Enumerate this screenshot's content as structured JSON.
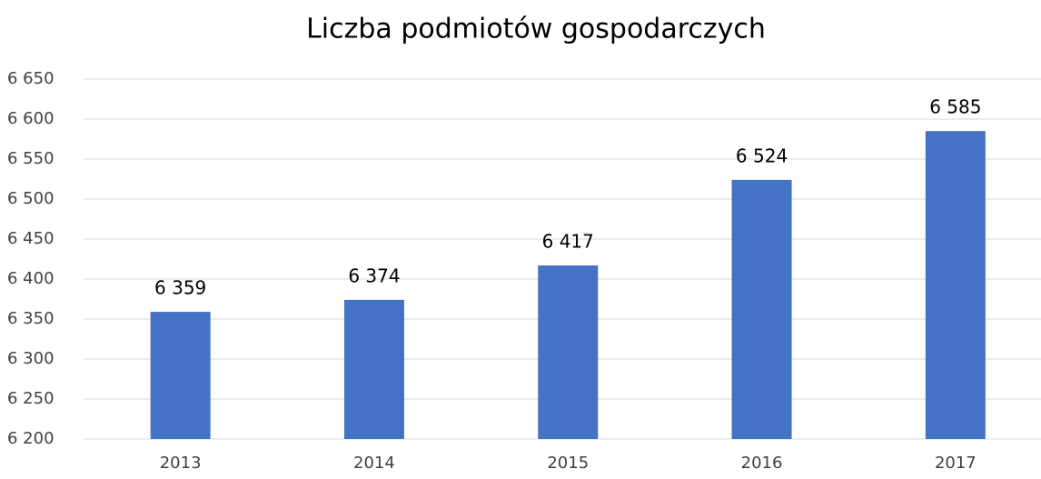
{
  "chart_data": {
    "type": "bar",
    "title": "Liczba podmiotów gospodarczych",
    "categories": [
      "2013",
      "2014",
      "2015",
      "2016",
      "2017"
    ],
    "values": [
      6359,
      6374,
      6417,
      6524,
      6585
    ],
    "value_labels": [
      "6 359",
      "6 374",
      "6 417",
      "6 524",
      "6 585"
    ],
    "color": "#4472c4",
    "ylim": [
      6200,
      6650
    ],
    "yticks": [
      {
        "value": 6200,
        "label": "6 200"
      },
      {
        "value": 6250,
        "label": "6 250"
      },
      {
        "value": 6300,
        "label": "6 300"
      },
      {
        "value": 6350,
        "label": "6 350"
      },
      {
        "value": 6400,
        "label": "6 400"
      },
      {
        "value": 6450,
        "label": "6 450"
      },
      {
        "value": 6500,
        "label": "6 500"
      },
      {
        "value": 6550,
        "label": "6 550"
      },
      {
        "value": 6600,
        "label": "6 600"
      },
      {
        "value": 6650,
        "label": "6 650"
      }
    ],
    "grid": true
  }
}
